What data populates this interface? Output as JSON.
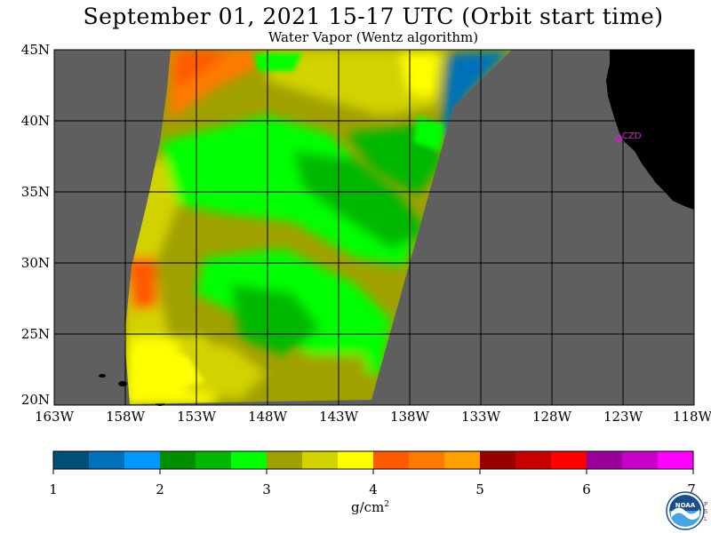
{
  "title": "September 01, 2021  15-17 UTC  (Orbit start time)",
  "subtitle": "Water Vapor (Wentz algorithm)",
  "map": {
    "lat_labels": [
      "45N",
      "40N",
      "35N",
      "30N",
      "25N",
      "20N"
    ],
    "lon_labels": [
      "163W",
      "158W",
      "153W",
      "148W",
      "143W",
      "138W",
      "133W",
      "128W",
      "123W",
      "118W"
    ],
    "station_label": "CZD",
    "colors": {
      "no_data": "#5f5f5f",
      "land": "#000000",
      "grid": "#000000",
      "station": "#ff00ff"
    }
  },
  "colorbar": {
    "tick_labels": [
      "1",
      "2",
      "3",
      "4",
      "5",
      "6",
      "7"
    ],
    "unit_base": "g/cm",
    "unit_exp": "2",
    "colors": [
      "#004f7a",
      "#0071b8",
      "#0098ff",
      "#008f00",
      "#00b800",
      "#00ff00",
      "#a0a000",
      "#d2d200",
      "#ffff00",
      "#ff5a00",
      "#ff7a00",
      "#ffa000",
      "#9a0000",
      "#c80000",
      "#ff0000",
      "#9a009a",
      "#c800c8",
      "#ff00ff"
    ]
  },
  "logo": {
    "text": "NOAA",
    "side_text": "P\nS\nL"
  }
}
